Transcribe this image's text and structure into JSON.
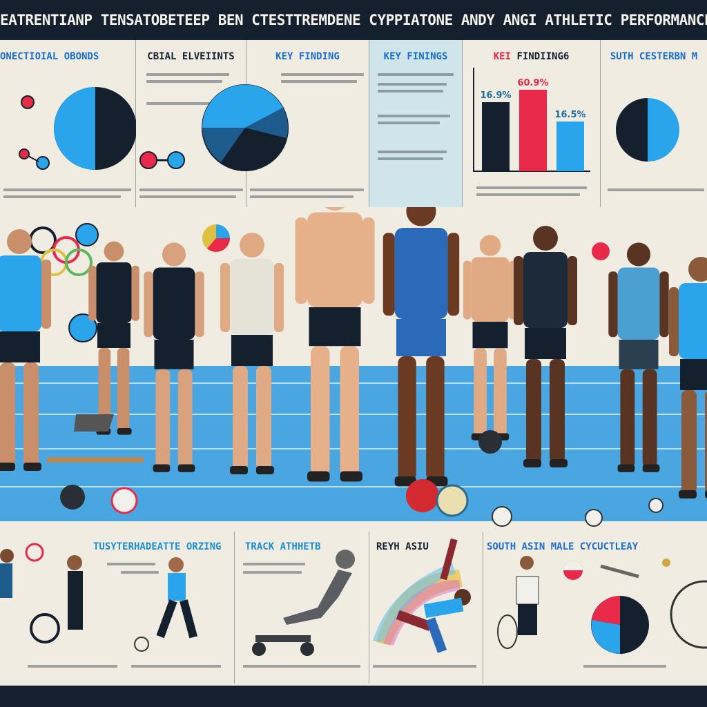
{
  "title": "EATRENTIANP TENSATOBETEEP BEN CTESTTREMDENE CYPPIATONE ANDY ANGI ATHLETIC PERFORMANCE T",
  "top_panels": [
    {
      "heading": "ONECTIOIAL OBONDS",
      "color": "#1a6fd1"
    },
    {
      "heading": "CBIAL ELVEIINTS",
      "color": "#14202e"
    },
    {
      "heading": "KEY FINDING",
      "color": "#1a6fd1"
    },
    {
      "heading": "KEY FININGS",
      "color": "#1a6fd1"
    },
    {
      "heading_accent": "KEI",
      "heading": "FINDIING6",
      "color": "#14202e"
    },
    {
      "heading": "SUTH CESTERBN M",
      "color": "#1a6fd1"
    }
  ],
  "bar_chart": {
    "labels": [
      "16.9%",
      "60.9%",
      "16.5%"
    ],
    "values": [
      16.9,
      60.9,
      16.5
    ],
    "colors": [
      "#14202e",
      "#e8294a",
      "#2aa4ea"
    ]
  },
  "bottom_panels": [
    {
      "heading": "TUSYTERHADEATTE ORZING",
      "color": "#1a8fd1"
    },
    {
      "heading": "TRACK ATHHETB",
      "color": "#1a8fd1"
    },
    {
      "heading": "REYH ASIU",
      "color": "#14202e"
    },
    {
      "heading": "SOUTH ASIN MALE CYCUCTLEAY",
      "color": "#1a6fd1"
    }
  ],
  "colors": {
    "navy": "#14202e",
    "blue": "#2aa4ea",
    "red": "#e8294a",
    "track": "#4aa6e0",
    "paper": "#f1ece2"
  }
}
